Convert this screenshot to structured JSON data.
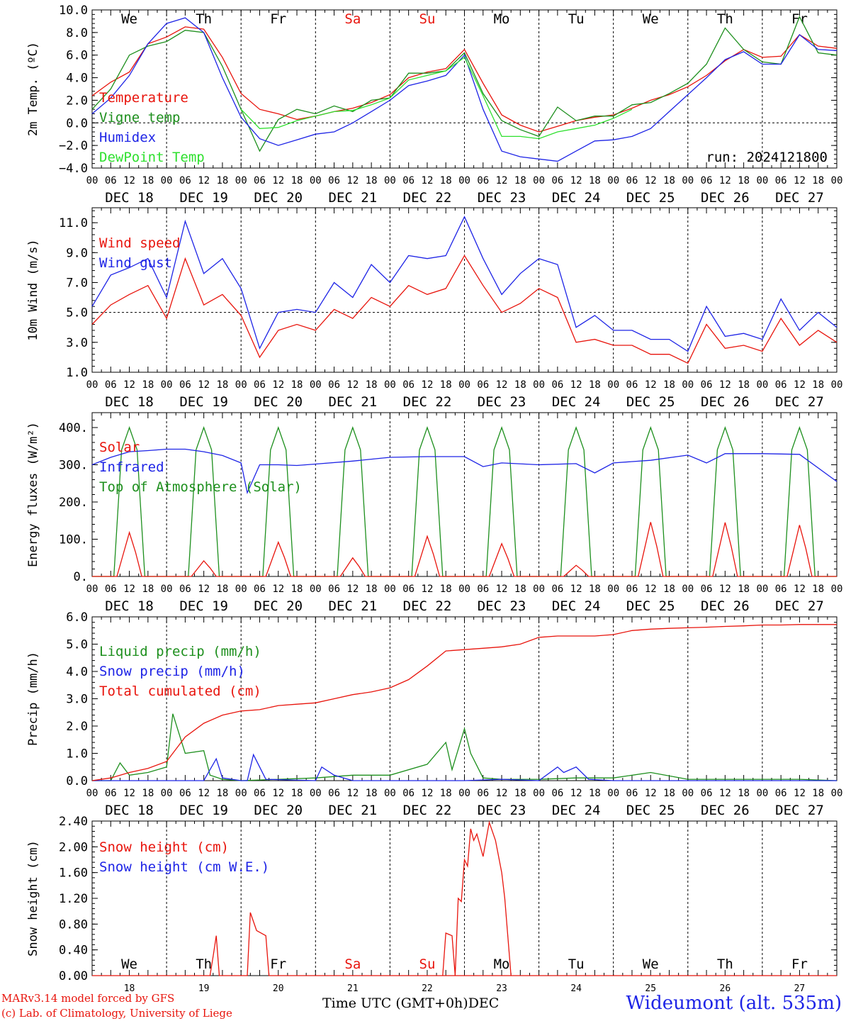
{
  "colors": {
    "red": "#e8140c",
    "green": "#1d8f1d",
    "blue": "#1e24e6",
    "lightgreen": "#2ee02e",
    "black": "#000000"
  },
  "day_letters": [
    "We",
    "Th",
    "Fr",
    "Sa",
    "Su",
    "Mo",
    "Tu",
    "We",
    "Th",
    "Fr"
  ],
  "day_letter_colors": [
    "black",
    "black",
    "black",
    "red",
    "red",
    "black",
    "black",
    "black",
    "black",
    "black"
  ],
  "date_labels": [
    "DEC 18",
    "DEC 19",
    "DEC 20",
    "DEC 21",
    "DEC 22",
    "DEC 23",
    "DEC 24",
    "DEC 25",
    "DEC 26",
    "DEC 27"
  ],
  "hour_ticks": [
    "00",
    "06",
    "12",
    "18"
  ],
  "bottom_day_numbers": [
    "18",
    "19",
    "20",
    "21",
    "22",
    "23",
    "24",
    "25",
    "26",
    "27"
  ],
  "footer": {
    "model": "MARv3.14 model forced by GFS",
    "lab": "(c) Lab. of Climatology, University of Liege",
    "time_label": "Time UTC (GMT+0h)",
    "month": "DEC",
    "station": "Wideumont (alt. 535m)"
  },
  "chart_data": [
    {
      "type": "line",
      "title": "",
      "ylabel": "2m Temp. (ºC)",
      "ylim": [
        -4,
        10
      ],
      "yticks": [
        "−4.0",
        "−2.0",
        "0.0",
        "2.0",
        "4.0",
        "6.0",
        "8.0",
        "10.0"
      ],
      "ytick_values": [
        -4,
        -2,
        0,
        2,
        4,
        6,
        8,
        10
      ],
      "hline": 0,
      "annotation": "run: 2024121800",
      "x_unit": "hours since DEC 18 00 UTC",
      "series": [
        {
          "name": "Temperature",
          "color": "red",
          "x": [
            0,
            6,
            12,
            18,
            24,
            30,
            36,
            42,
            48,
            54,
            60,
            66,
            72,
            78,
            84,
            90,
            96,
            102,
            108,
            114,
            120,
            126,
            132,
            138,
            144,
            150,
            156,
            162,
            168,
            174,
            180,
            186,
            192,
            198,
            204,
            210,
            216,
            222,
            228,
            234,
            240
          ],
          "y": [
            2.4,
            3.6,
            4.5,
            7.0,
            7.6,
            8.5,
            8.3,
            5.8,
            2.6,
            1.2,
            0.8,
            0.3,
            0.6,
            1.0,
            1.3,
            1.8,
            2.5,
            4.0,
            4.5,
            4.8,
            6.5,
            3.5,
            0.7,
            -0.2,
            -0.8,
            -0.3,
            0.2,
            0.5,
            0.7,
            1.3,
            2.0,
            2.5,
            3.2,
            4.2,
            5.5,
            6.5,
            5.8,
            5.9,
            7.8,
            6.8,
            6.6
          ]
        },
        {
          "name": "Vigne temp",
          "color": "green",
          "x": [
            0,
            6,
            12,
            18,
            24,
            30,
            36,
            42,
            48,
            54,
            60,
            66,
            72,
            78,
            84,
            90,
            96,
            102,
            108,
            114,
            120,
            126,
            132,
            138,
            144,
            150,
            156,
            162,
            168,
            174,
            180,
            186,
            192,
            198,
            204,
            210,
            216,
            222,
            228,
            234,
            240
          ],
          "y": [
            1.2,
            3.0,
            6.0,
            6.8,
            7.2,
            8.2,
            8.0,
            5.0,
            1.2,
            -2.5,
            0.3,
            1.2,
            0.8,
            1.5,
            1.0,
            2.0,
            2.2,
            4.4,
            4.4,
            4.6,
            6.2,
            2.6,
            0.2,
            -0.6,
            -1.2,
            1.4,
            0.2,
            0.6,
            0.6,
            1.6,
            1.8,
            2.6,
            3.5,
            5.2,
            8.4,
            6.5,
            5.4,
            5.2,
            9.4,
            6.2,
            6.0
          ]
        },
        {
          "name": "Humidex",
          "color": "blue",
          "x": [
            0,
            6,
            12,
            18,
            24,
            30,
            36,
            42,
            48,
            54,
            60,
            66,
            72,
            78,
            84,
            90,
            96,
            102,
            108,
            114,
            120,
            126,
            132,
            138,
            144,
            150,
            156,
            162,
            168,
            174,
            180,
            186,
            192,
            198,
            204,
            210,
            216,
            222,
            228,
            234,
            240
          ],
          "y": [
            0.8,
            2.2,
            4.2,
            7.0,
            8.8,
            9.3,
            8.0,
            4.0,
            0.5,
            -1.4,
            -2.0,
            -1.5,
            -1.0,
            -0.8,
            0.0,
            1.0,
            2.0,
            3.3,
            3.7,
            4.2,
            6.0,
            1.2,
            -2.5,
            -3.0,
            -3.2,
            -3.4,
            -2.5,
            -1.6,
            -1.5,
            -1.2,
            -0.5,
            1.0,
            2.5,
            4.0,
            5.6,
            6.3,
            5.2,
            5.2,
            7.8,
            6.5,
            6.4
          ]
        },
        {
          "name": "DewPoint Temp",
          "color": "lightgreen",
          "x": [
            48,
            54,
            60,
            66,
            72,
            78,
            84,
            90,
            96,
            102,
            108,
            114,
            120,
            126,
            132,
            138,
            144,
            150,
            156,
            162,
            168,
            174
          ],
          "y": [
            1.2,
            -0.5,
            -0.4,
            0.2,
            0.6,
            1.0,
            1.1,
            1.6,
            2.2,
            3.8,
            4.2,
            4.6,
            5.8,
            2.4,
            -1.2,
            -1.2,
            -1.4,
            -0.8,
            -0.5,
            -0.2,
            0.4,
            1.2
          ]
        }
      ]
    },
    {
      "type": "line",
      "title": "",
      "ylabel": "10m Wind (m/s)",
      "ylim": [
        1,
        12
      ],
      "yticks": [
        "1.0",
        "3.0",
        "5.0",
        "7.0",
        "9.0",
        "11.0"
      ],
      "ytick_values": [
        1,
        3,
        5,
        7,
        9,
        11
      ],
      "hline": 5,
      "series": [
        {
          "name": "Wind speed",
          "color": "red",
          "x": [
            0,
            6,
            12,
            18,
            24,
            30,
            36,
            42,
            48,
            54,
            60,
            66,
            72,
            78,
            84,
            90,
            96,
            102,
            108,
            114,
            120,
            126,
            132,
            138,
            144,
            150,
            156,
            162,
            168,
            174,
            180,
            186,
            192,
            198,
            204,
            210,
            216,
            222,
            228,
            234,
            240
          ],
          "y": [
            4.2,
            5.5,
            6.2,
            6.8,
            4.6,
            8.6,
            5.5,
            6.2,
            4.8,
            2.0,
            3.8,
            4.2,
            3.8,
            5.2,
            4.6,
            6.0,
            5.4,
            6.8,
            6.2,
            6.6,
            8.8,
            6.8,
            5.0,
            5.6,
            6.6,
            6.0,
            3.0,
            3.2,
            2.8,
            2.8,
            2.2,
            2.2,
            1.6,
            4.2,
            2.6,
            2.8,
            2.4,
            4.6,
            2.8,
            3.8,
            3.0
          ]
        },
        {
          "name": "Wind gust",
          "color": "blue",
          "x": [
            0,
            6,
            12,
            18,
            24,
            30,
            36,
            42,
            48,
            54,
            60,
            66,
            72,
            78,
            84,
            90,
            96,
            102,
            108,
            114,
            120,
            126,
            132,
            138,
            144,
            150,
            156,
            162,
            168,
            174,
            180,
            186,
            192,
            198,
            204,
            210,
            216,
            222,
            228,
            234,
            240
          ],
          "y": [
            5.4,
            7.5,
            8.0,
            8.6,
            6.0,
            11.1,
            7.6,
            8.6,
            6.6,
            2.6,
            5.0,
            5.2,
            5.0,
            7.0,
            6.0,
            8.2,
            7.0,
            8.8,
            8.6,
            8.8,
            11.4,
            8.6,
            6.2,
            7.6,
            8.6,
            8.2,
            4.0,
            4.8,
            3.8,
            3.8,
            3.2,
            3.2,
            2.4,
            5.4,
            3.4,
            3.6,
            3.2,
            5.9,
            3.8,
            5.0,
            4.0
          ]
        }
      ]
    },
    {
      "type": "line",
      "title": "",
      "ylabel": "Energy fluxes (W/m²)",
      "ylim": [
        0,
        440
      ],
      "yticks": [
        "0.",
        "100.",
        "200.",
        "300.",
        "400."
      ],
      "ytick_values": [
        0,
        100,
        200,
        300,
        400
      ],
      "series": [
        {
          "name": "Solar",
          "color": "red",
          "peaks": [
            {
              "day": 0,
              "v": 118
            },
            {
              "day": 1,
              "v": 42
            },
            {
              "day": 2,
              "v": 92
            },
            {
              "day": 3,
              "v": 50
            },
            {
              "day": 4,
              "v": 108
            },
            {
              "day": 5,
              "v": 88
            },
            {
              "day": 6,
              "v": 30
            },
            {
              "day": 7,
              "v": 146
            },
            {
              "day": 8,
              "v": 145
            },
            {
              "day": 9,
              "v": 138
            }
          ]
        },
        {
          "name": "Infrared",
          "color": "blue",
          "x": [
            0,
            6,
            12,
            18,
            24,
            30,
            36,
            42,
            48,
            50,
            54,
            60,
            66,
            72,
            84,
            96,
            108,
            120,
            126,
            132,
            144,
            156,
            162,
            168,
            180,
            192,
            198,
            204,
            216,
            228,
            240
          ],
          "y": [
            300,
            320,
            335,
            338,
            342,
            342,
            335,
            325,
            305,
            225,
            300,
            300,
            298,
            302,
            310,
            320,
            322,
            322,
            295,
            305,
            300,
            303,
            278,
            305,
            312,
            326,
            305,
            330,
            330,
            328,
            255
          ]
        },
        {
          "name": "Top of Atmosphere (Solar)",
          "color": "green",
          "peak": 400
        }
      ]
    },
    {
      "type": "line",
      "title": "",
      "ylabel": "Precip (mm/h)",
      "ylim": [
        0,
        6
      ],
      "yticks": [
        "0.0",
        "1.0",
        "2.0",
        "3.0",
        "4.0",
        "5.0",
        "6.0"
      ],
      "ytick_values": [
        0,
        1,
        2,
        3,
        4,
        5,
        6
      ],
      "series": [
        {
          "name": "Liquid precip (mm/h)",
          "color": "green",
          "x": [
            0,
            6,
            9,
            12,
            18,
            24,
            26,
            30,
            36,
            38,
            42,
            48,
            60,
            72,
            84,
            96,
            108,
            114,
            116,
            120,
            122,
            126,
            132,
            144,
            156,
            168,
            180,
            192,
            204,
            216,
            228,
            240
          ],
          "y": [
            0,
            0,
            0.65,
            0.2,
            0.3,
            0.5,
            2.45,
            1.0,
            1.1,
            0.2,
            0.05,
            0,
            0.05,
            0.1,
            0.2,
            0.2,
            0.6,
            1.4,
            0.4,
            1.9,
            1.0,
            0.1,
            0.05,
            0.05,
            0.1,
            0.1,
            0.3,
            0.05,
            0.05,
            0.05,
            0.05,
            0
          ]
        },
        {
          "name": "Snow precip (mm/h)",
          "color": "blue",
          "x": [
            0,
            36,
            40,
            42,
            48,
            50,
            52,
            56,
            72,
            74,
            78,
            84,
            96,
            120,
            132,
            144,
            150,
            152,
            156,
            160,
            168,
            240
          ],
          "y": [
            0,
            0,
            0.8,
            0.1,
            0,
            0,
            0.95,
            0.05,
            0,
            0.5,
            0.2,
            0,
            0,
            0,
            0.05,
            0,
            0.5,
            0.3,
            0.5,
            0.05,
            0,
            0
          ]
        },
        {
          "name": "Total cumulated (cm)",
          "color": "red",
          "x": [
            0,
            6,
            12,
            18,
            24,
            30,
            36,
            42,
            48,
            54,
            60,
            66,
            72,
            78,
            84,
            90,
            96,
            102,
            108,
            114,
            120,
            126,
            132,
            138,
            144,
            150,
            156,
            162,
            168,
            174,
            180,
            186,
            192,
            198,
            204,
            210,
            216,
            222,
            228,
            234,
            240
          ],
          "y": [
            0,
            0.1,
            0.3,
            0.45,
            0.7,
            1.6,
            2.1,
            2.4,
            2.55,
            2.6,
            2.75,
            2.8,
            2.85,
            3.0,
            3.15,
            3.25,
            3.4,
            3.7,
            4.2,
            4.75,
            4.8,
            4.85,
            4.9,
            5.0,
            5.25,
            5.3,
            5.3,
            5.3,
            5.35,
            5.5,
            5.55,
            5.58,
            5.6,
            5.62,
            5.65,
            5.67,
            5.7,
            5.7,
            5.72,
            5.72,
            5.72
          ]
        }
      ]
    },
    {
      "type": "line",
      "title": "",
      "ylabel": "Snow height (cm)",
      "ylim": [
        0,
        2.4
      ],
      "yticks": [
        "0.00",
        "0.40",
        "0.80",
        "1.20",
        "1.60",
        "2.00",
        "2.40"
      ],
      "ytick_values": [
        0,
        0.4,
        0.8,
        1.2,
        1.6,
        2.0,
        2.4
      ],
      "series": [
        {
          "name": "Snow height (cm)",
          "color": "red",
          "x": [
            0,
            38,
            39,
            40,
            41,
            49,
            50,
            51,
            53,
            56,
            57,
            108,
            109,
            110,
            111,
            112,
            114,
            116,
            117,
            118,
            119,
            120,
            121,
            122,
            124,
            126,
            127,
            128,
            130,
            132,
            134,
            140,
            144,
            240
          ],
          "y": [
            0,
            0,
            0.3,
            0.62,
            0,
            0,
            0,
            0.98,
            0.7,
            0.62,
            0,
            0,
            0,
            0,
            0,
            0,
            0,
            0,
            0,
            0,
            0,
            0,
            0,
            0,
            0,
            0,
            0,
            0,
            0,
            0,
            0,
            0,
            0,
            0
          ]
        },
        {
          "name": "Snow height (cm W.E.)",
          "color": "blue",
          "x": [],
          "y": []
        }
      ],
      "snow_extra": {
        "x": [
          113,
          114,
          115,
          116,
          117,
          118,
          119,
          120,
          121,
          122,
          123,
          124,
          126,
          128,
          130,
          132,
          133,
          134,
          135
        ],
        "y": [
          0,
          0.66,
          0.64,
          0.62,
          0,
          1.2,
          1.15,
          1.8,
          1.7,
          2.28,
          2.1,
          2.2,
          1.85,
          2.38,
          2.1,
          1.6,
          1.2,
          0.6,
          0
        ]
      }
    }
  ]
}
